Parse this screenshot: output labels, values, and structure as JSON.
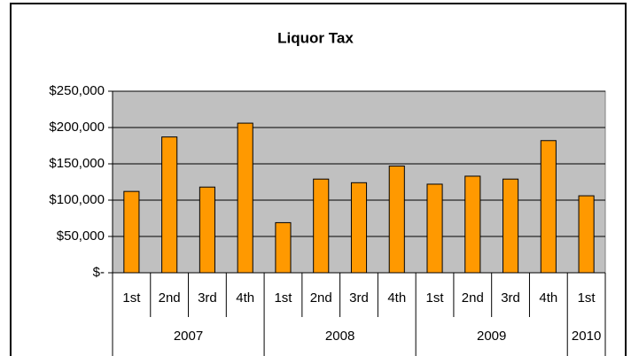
{
  "chart_data": {
    "type": "bar",
    "title": "Liquor Tax",
    "color": "#ff9900",
    "groups": [
      {
        "name": "2007",
        "categories": [
          "1st",
          "2nd",
          "3rd",
          "4th"
        ],
        "values": [
          112000,
          187000,
          118000,
          206000
        ]
      },
      {
        "name": "2008",
        "categories": [
          "1st",
          "2nd",
          "3rd",
          "4th"
        ],
        "values": [
          69000,
          129000,
          124000,
          147000
        ]
      },
      {
        "name": "2009",
        "categories": [
          "1st",
          "2nd",
          "3rd",
          "4th"
        ],
        "values": [
          122000,
          133000,
          129000,
          182000
        ]
      },
      {
        "name": "2010",
        "categories": [
          "1st"
        ],
        "values": [
          106000
        ]
      }
    ],
    "ylim": [
      0,
      250000
    ],
    "yticks": [
      {
        "value": 0,
        "label": "$-"
      },
      {
        "value": 50000,
        "label": "$50,000"
      },
      {
        "value": 100000,
        "label": "$100,000"
      },
      {
        "value": 150000,
        "label": "$150,000"
      },
      {
        "value": 200000,
        "label": "$200,000"
      },
      {
        "value": 250000,
        "label": "$250,000"
      }
    ],
    "grid": true
  }
}
